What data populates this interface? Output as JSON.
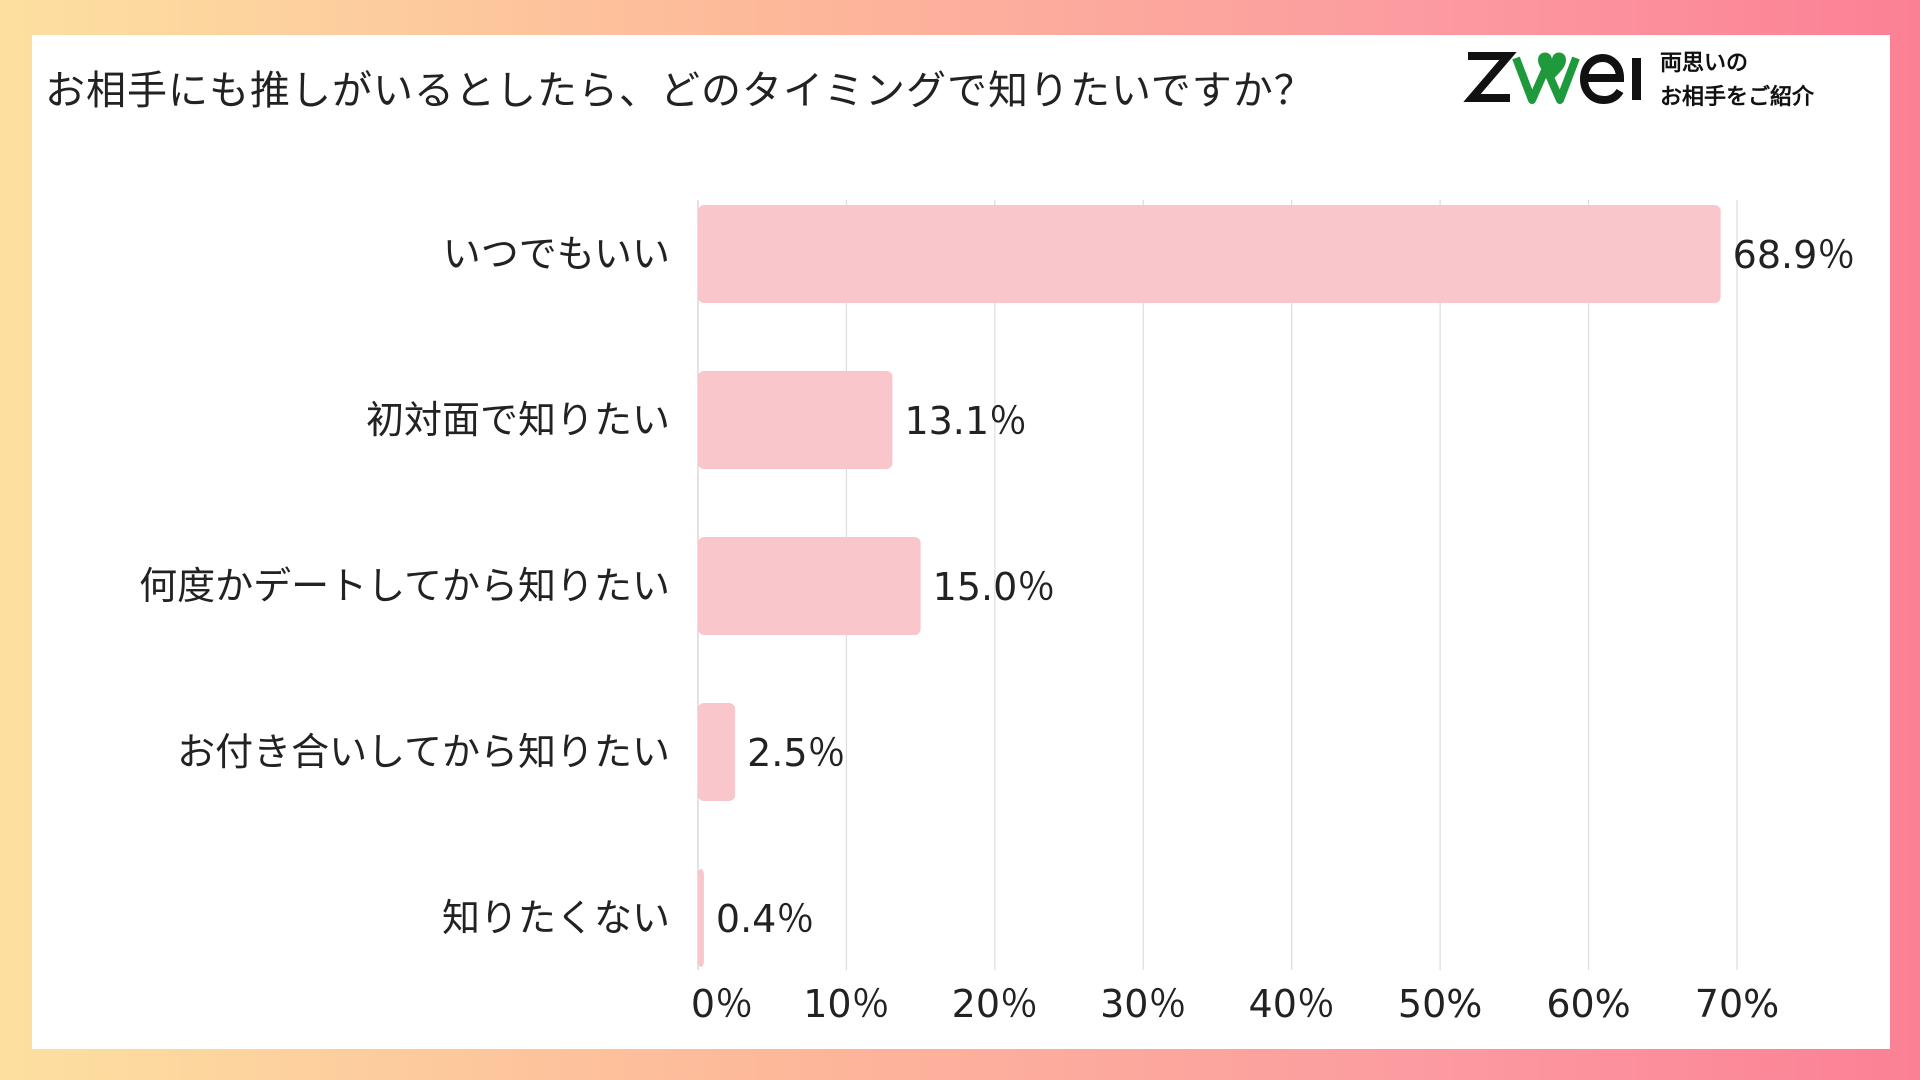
{
  "title": "お相手にも推しがいるとしたら、どのタイミングで知りたいですか？",
  "brand": {
    "logo_text": "zwei",
    "tagline_1": "両思いの",
    "tagline_2": "お相手をご紹介",
    "colors": {
      "logo_dark": "#111111",
      "logo_heart": "#1e9a3c"
    }
  },
  "colors": {
    "bar": "#f8c6cb",
    "grid": "#dcdcdc",
    "axis_text": "#222222"
  },
  "chart_data": {
    "type": "bar",
    "orientation": "horizontal",
    "categories": [
      "いつでもいい",
      "初対面で知りたい",
      "何度かデートしてから知りたい",
      "お付き合いしてから知りたい",
      "知りたくない"
    ],
    "values": [
      68.9,
      13.1,
      15.0,
      2.5,
      0.4
    ],
    "value_labels": [
      "68.9％",
      "13.1％",
      "15.0％",
      "2.5％",
      "0.4％"
    ],
    "xlim": [
      0,
      70
    ],
    "xticks": [
      0,
      10,
      20,
      30,
      40,
      50,
      60,
      70
    ],
    "xtick_labels": [
      "0％",
      "10％",
      "20％",
      "30％",
      "40％",
      "50%",
      "60%",
      "70%"
    ],
    "grid": true,
    "xlabel": "",
    "ylabel": ""
  }
}
